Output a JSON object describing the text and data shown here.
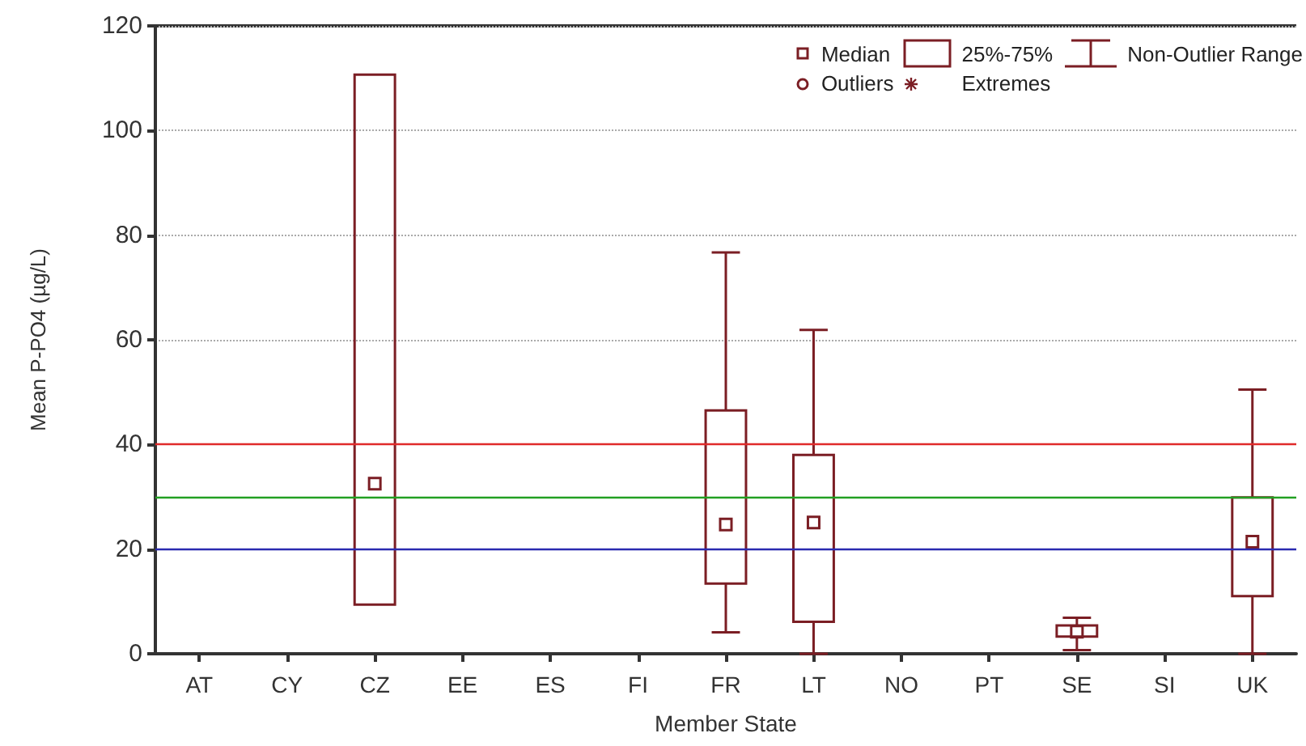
{
  "chart_data": {
    "type": "box",
    "xlabel": "Member State",
    "ylabel": "Mean P-PO4 (µg/L)",
    "categories": [
      "AT",
      "CY",
      "CZ",
      "EE",
      "ES",
      "FI",
      "FR",
      "LT",
      "NO",
      "PT",
      "SE",
      "SI",
      "UK"
    ],
    "color": "#7b1e24",
    "boxes": [
      null,
      null,
      {
        "low": 9.4,
        "q1": 9.4,
        "median": 32.5,
        "q3": 110.7,
        "high": 110.7
      },
      null,
      null,
      null,
      {
        "low": 4.1,
        "q1": 13.4,
        "median": 24.7,
        "q3": 46.5,
        "high": 76.7
      },
      {
        "low": 0,
        "q1": 6.1,
        "median": 25.1,
        "q3": 38,
        "high": 61.9
      },
      null,
      null,
      {
        "low": 0.7,
        "q1": 3.3,
        "median": 4.2,
        "q3": 5.4,
        "high": 6.9
      },
      null,
      {
        "low": 0,
        "q1": 11,
        "median": 21.4,
        "q3": 29.9,
        "high": 50.5
      }
    ],
    "ylim": [
      0,
      120
    ],
    "yticks": [
      0,
      20,
      40,
      60,
      80,
      100,
      120
    ],
    "grid": "y",
    "ref_lines": [
      {
        "axis": "y",
        "value": 40,
        "color": "#e02a2a"
      },
      {
        "axis": "y",
        "value": 30,
        "color": "#22a022"
      },
      {
        "axis": "y",
        "value": 20,
        "color": "#2a2ab0"
      }
    ],
    "annotations": [
      "Median",
      "25%-75%",
      "Non-Outlier Range",
      "Outliers",
      "Extremes"
    ]
  }
}
